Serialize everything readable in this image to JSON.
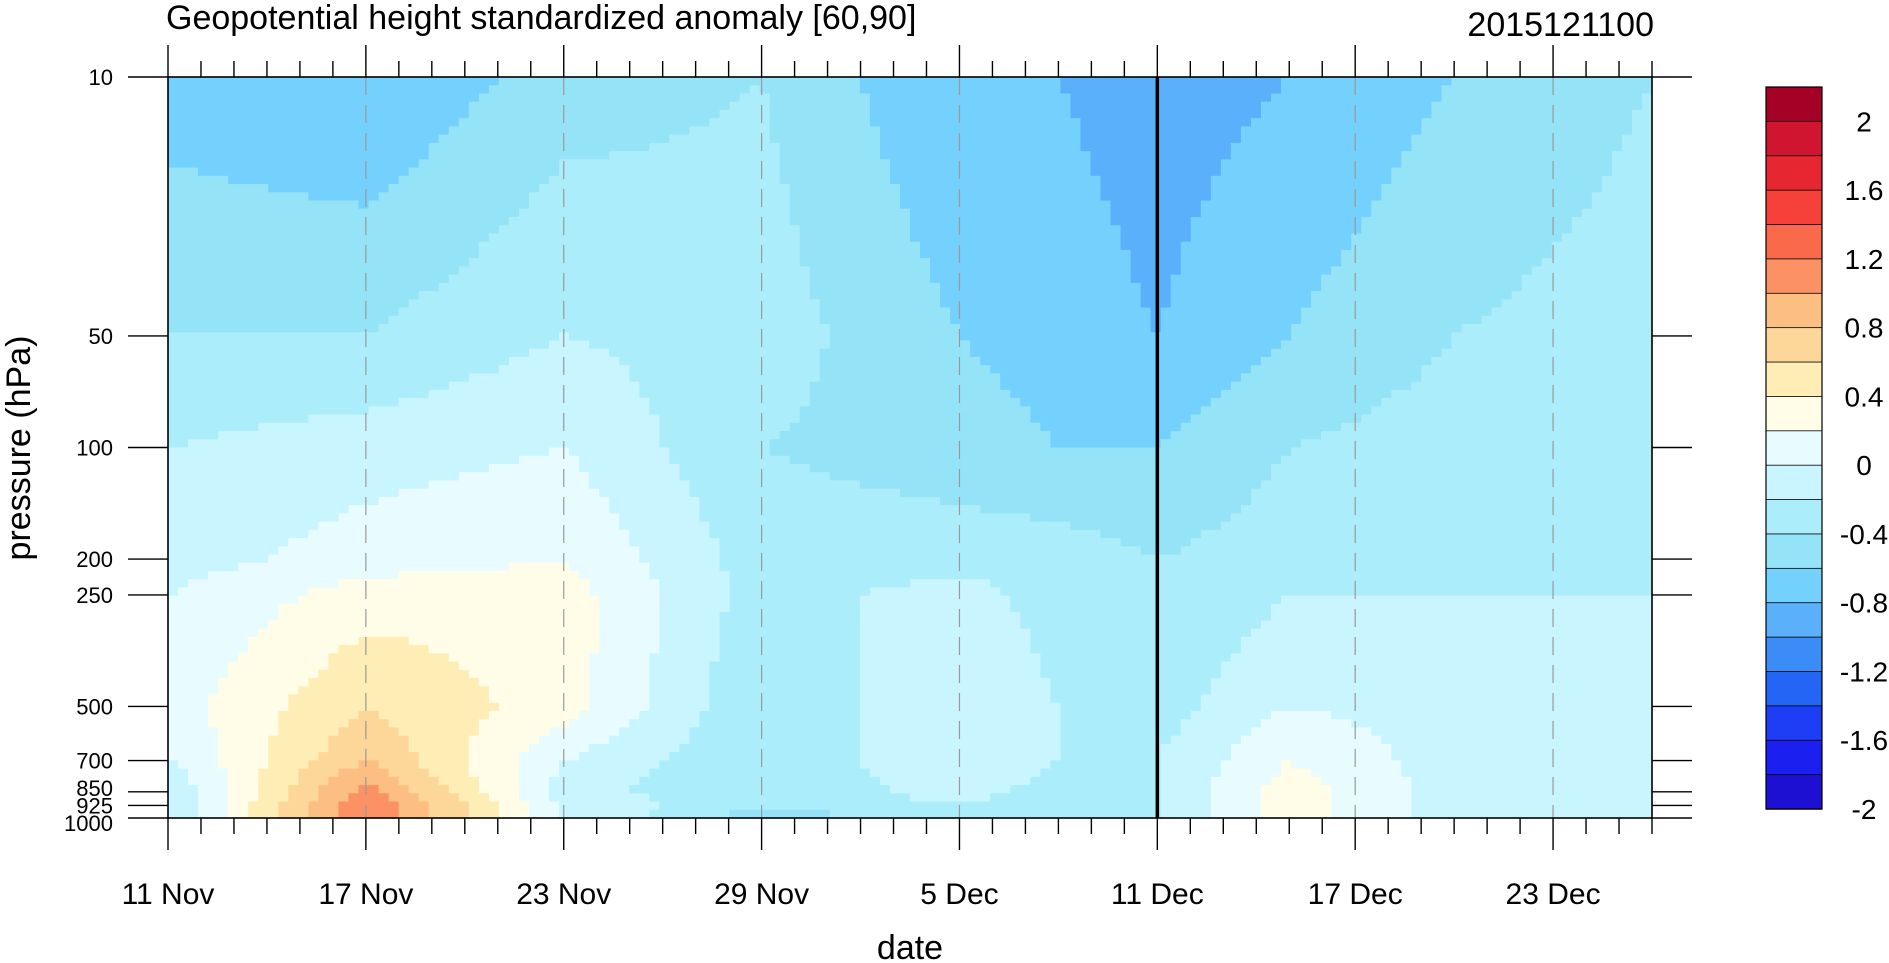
{
  "chart_data": {
    "type": "contour",
    "title": "Geopotential height standardized anomaly [60,90]",
    "right_title": "2015121100",
    "xlabel": "date",
    "ylabel": "pressure (hPa)",
    "x_start": "2015-11-11",
    "x_end": "2015-12-26",
    "x_ticks": [
      {
        "date": "2015-11-11",
        "label": "11 Nov"
      },
      {
        "date": "2015-11-17",
        "label": "17 Nov"
      },
      {
        "date": "2015-11-23",
        "label": "23 Nov"
      },
      {
        "date": "2015-11-29",
        "label": "29 Nov"
      },
      {
        "date": "2015-12-05",
        "label": "5 Dec"
      },
      {
        "date": "2015-12-11",
        "label": "11 Dec"
      },
      {
        "date": "2015-12-17",
        "label": "17 Dec"
      },
      {
        "date": "2015-12-23",
        "label": "23 Dec"
      }
    ],
    "y_scale": "log",
    "y_reversed": true,
    "ylim": [
      1000,
      10
    ],
    "y_ticks": [
      10,
      50,
      100,
      200,
      250,
      500,
      700,
      850,
      925,
      1000
    ],
    "vertical_marker_date": "2015-12-11",
    "colorbar": {
      "labels": [
        "2",
        "1.6",
        "1.2",
        "0.8",
        "0.4",
        "0",
        "-0.4",
        "-0.8",
        "-1.2",
        "-1.6",
        "-2"
      ],
      "colors": [
        "#a50026",
        "#cf1530",
        "#e62631",
        "#f5413a",
        "#fa6a4a",
        "#fc9163",
        "#fdbe82",
        "#fdd69a",
        "#feeeb5",
        "#fffde7",
        "#e8fcff",
        "#c8f5ff",
        "#acedfb",
        "#94e3f7",
        "#74d0fd",
        "#5ab0fa",
        "#3c8cf7",
        "#2565f6",
        "#1e3ef5",
        "#1b1ff0",
        "#1d10d2"
      ]
    },
    "field": {
      "levels": [
        10,
        50,
        100,
        200,
        250,
        500,
        700,
        850,
        925,
        1000
      ],
      "dates": [
        "2015-11-11",
        "2015-11-17",
        "2015-11-23",
        "2015-11-29",
        "2015-12-05",
        "2015-12-08",
        "2015-12-11",
        "2015-12-15",
        "2015-12-20",
        "2015-12-26"
      ],
      "values": [
        [
          -0.9,
          -1.0,
          -0.7,
          -0.6,
          -1.0,
          -1.0,
          -1.1,
          -1.0,
          -0.8,
          -0.6
        ],
        [
          -0.6,
          -0.6,
          -0.4,
          -0.5,
          -0.8,
          -0.9,
          -1.0,
          -0.8,
          -0.6,
          -0.5
        ],
        [
          -0.4,
          -0.3,
          -0.2,
          -0.6,
          -0.7,
          -0.8,
          -0.8,
          -0.6,
          -0.5,
          -0.4
        ],
        [
          -0.3,
          -0.1,
          0.0,
          -0.5,
          -0.5,
          -0.5,
          -0.6,
          -0.5,
          -0.5,
          -0.4
        ],
        [
          -0.2,
          0.1,
          0.1,
          -0.5,
          -0.3,
          -0.5,
          -0.6,
          -0.4,
          -0.4,
          -0.4
        ],
        [
          -0.1,
          0.4,
          0.1,
          -0.6,
          -0.2,
          -0.4,
          -0.5,
          -0.2,
          -0.3,
          -0.4
        ],
        [
          -0.2,
          0.6,
          -0.2,
          -0.6,
          -0.2,
          -0.4,
          -0.4,
          0.0,
          -0.3,
          -0.4
        ],
        [
          -0.4,
          0.9,
          -0.3,
          -0.6,
          -0.3,
          -0.5,
          -0.4,
          0.1,
          -0.3,
          -0.4
        ],
        [
          -0.4,
          1.0,
          -0.2,
          -0.6,
          -0.4,
          -0.6,
          -0.4,
          0.1,
          -0.3,
          -0.4
        ],
        [
          -0.4,
          1.0,
          -0.2,
          -0.7,
          -0.5,
          -0.6,
          -0.4,
          0.1,
          -0.3,
          -0.4
        ]
      ]
    }
  }
}
